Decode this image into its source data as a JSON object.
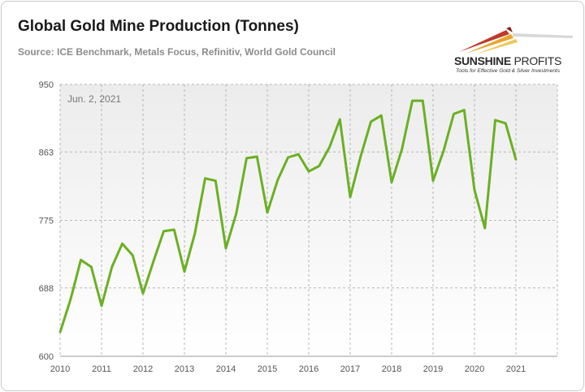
{
  "title": "Global Gold Mine Production (Tonnes)",
  "subtitle": "Source: ICE Benchmark, Metals Focus, Refinitiv, World Gold Council",
  "logo": {
    "name_bold": "SUNSHINE",
    "name_light": " PROFITS",
    "tagline": "Tools for Effective Gold & Silver Investments"
  },
  "chart_data": {
    "type": "line",
    "title": "Global Gold Mine Production (Tonnes)",
    "annotation": "Jun. 2, 2021",
    "xlabel": "",
    "ylabel": "",
    "ylim": [
      600,
      950
    ],
    "yticks": [
      "600",
      "688",
      "775",
      "863",
      "950"
    ],
    "xticks": [
      "2010",
      "2011",
      "2012",
      "2013",
      "2014",
      "2015",
      "2016",
      "2017",
      "2018",
      "2019",
      "2020",
      "2021"
    ],
    "xlim": [
      2010,
      2022
    ],
    "grid": true,
    "line_color": "#6ab023",
    "series": [
      {
        "x": [
          2010.0,
          2010.25,
          2010.5,
          2010.75,
          2011.0,
          2011.25,
          2011.5,
          2011.75,
          2012.0,
          2012.25,
          2012.5,
          2012.75,
          2013.0,
          2013.25,
          2013.5,
          2013.75,
          2014.0,
          2014.25,
          2014.5,
          2014.75,
          2015.0,
          2015.25,
          2015.5,
          2015.75,
          2016.0,
          2016.25,
          2016.5,
          2016.75,
          2017.0,
          2017.25,
          2017.5,
          2017.75,
          2018.0,
          2018.25,
          2018.5,
          2018.75,
          2019.0,
          2019.25,
          2019.5,
          2019.75,
          2020.0,
          2020.25,
          2020.5,
          2020.75,
          2021.0
        ],
        "values": [
          631,
          673,
          724,
          715,
          665,
          715,
          745,
          730,
          681,
          722,
          761,
          763,
          709,
          758,
          829,
          826,
          739,
          784,
          855,
          857,
          785,
          827,
          856,
          860,
          838,
          845,
          869,
          905,
          805,
          857,
          902,
          910,
          824,
          867,
          929,
          929,
          826,
          864,
          912,
          917,
          814,
          765,
          904,
          900,
          853
        ]
      }
    ]
  }
}
